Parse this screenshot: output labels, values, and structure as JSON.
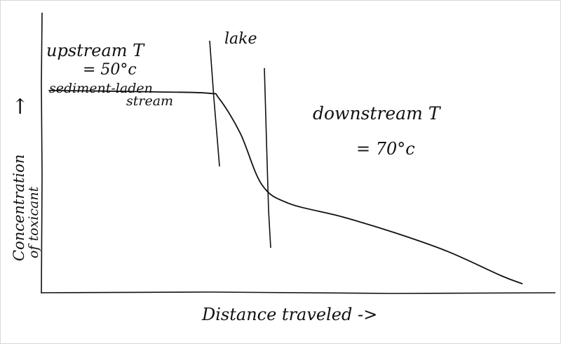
{
  "chart_data": {
    "type": "line",
    "xlabel": "Distance traveled ->",
    "ylabel": [
      "Concentration",
      "of toxicant"
    ],
    "y_axis_arrow": "↑",
    "grid": false,
    "x": [
      0,
      1,
      2,
      3,
      3.2,
      3.6,
      4.0,
      4.5,
      5.5,
      6.5,
      7.5,
      8.5,
      8.9
    ],
    "values": [
      72,
      71.8,
      71.5,
      71,
      69,
      56,
      37,
      30,
      25,
      19,
      12,
      3,
      0
    ],
    "ylim": [
      0,
      100
    ],
    "xlim": [
      0,
      9.5
    ],
    "regions": [
      {
        "label": "lake",
        "from": 3.2,
        "to": 4.2
      }
    ],
    "annotations": [
      {
        "lines": [
          "upstream T",
          "= 50°c",
          "sediment-laden",
          "stream"
        ]
      },
      {
        "lines": [
          "downstream T",
          "= 70°c"
        ]
      }
    ]
  }
}
